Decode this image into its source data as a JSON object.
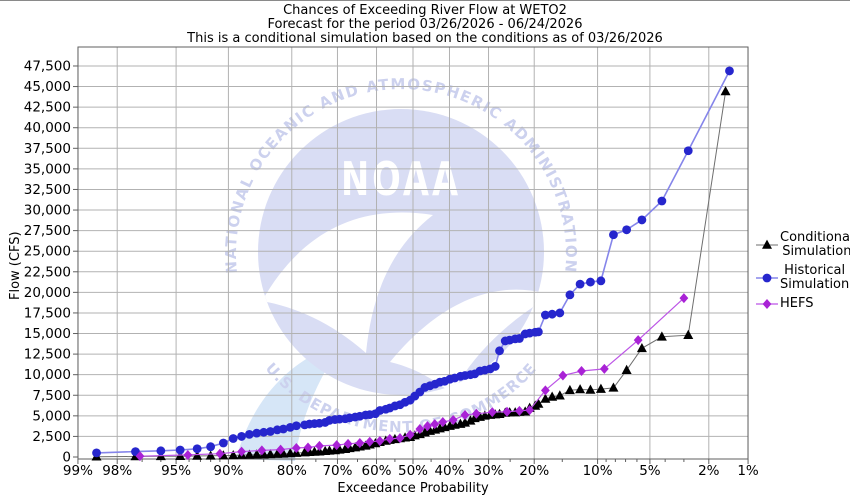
{
  "title": {
    "line1": "Chances of Exceeding River Flow at WETO2",
    "line2": "Forecast for the period 03/26/2026 - 06/24/2026",
    "line3": "This is a conditional simulation based on the conditions as of 03/26/2026"
  },
  "axes": {
    "x_label": "Exceedance Probability",
    "y_label": "Flow (CFS)"
  },
  "legend": {
    "position": "right",
    "items": [
      {
        "label_lines": [
          "Conditional",
          "Simulation"
        ],
        "marker": "triangle"
      },
      {
        "label_lines": [
          "Historical",
          "Simulation"
        ],
        "marker": "circle"
      },
      {
        "label_lines": [
          "HEFS"
        ],
        "marker": "diamond"
      }
    ]
  },
  "watermark": {
    "ring_text_top": "NATIONAL OCEANIC AND ATMOSPHERIC ADMINISTRATION",
    "ring_text_bottom": "U.S. DEPARTMENT OF COMMERCE",
    "center_text": "NOAA",
    "ring_color": "#ccd1ee",
    "disc_color": "#d9ddf4",
    "gull_color": "#ffffff",
    "outer_wing_color": "#d6e6f7"
  },
  "colors": {
    "background": "#ffffff",
    "grid": "#b2b2b2",
    "axis": "#5f5f5f",
    "text": "#000000"
  },
  "chart_data": {
    "type": "line",
    "title": "Chances of Exceeding River Flow at WETO2",
    "xlabel": "Exceedance Probability",
    "ylabel": "Flow (CFS)",
    "x_scale": "normal-probability (probit), high exceedance at left",
    "grid": true,
    "legend_position": "right",
    "ylim": [
      0,
      49500
    ],
    "y_tick_step": 2500,
    "y_ticks": [
      0,
      2500,
      5000,
      7500,
      10000,
      12500,
      15000,
      17500,
      20000,
      22500,
      25000,
      27500,
      30000,
      32500,
      35000,
      37500,
      40000,
      42500,
      45000,
      47500
    ],
    "x_ticks": [
      99,
      98,
      95,
      90,
      80,
      70,
      60,
      50,
      40,
      30,
      20,
      10,
      5,
      2,
      1
    ],
    "x_minor_ticks": [
      97,
      96,
      94,
      93,
      92,
      91,
      85,
      75,
      65,
      55,
      45,
      35,
      25,
      15,
      9,
      8,
      7,
      6,
      4,
      3
    ],
    "series": [
      {
        "name": "Conditional Simulation",
        "marker": "triangle",
        "color": "#000000",
        "line_color": "#6e6e6e",
        "line_width": 1,
        "points": [
          [
            98.6,
            30
          ],
          [
            97.3,
            60
          ],
          [
            96,
            80
          ],
          [
            94.7,
            100
          ],
          [
            93.3,
            120
          ],
          [
            92,
            140
          ],
          [
            90.6,
            170
          ],
          [
            89.4,
            200
          ],
          [
            88.3,
            230
          ],
          [
            87.2,
            250
          ],
          [
            86.1,
            280
          ],
          [
            85,
            300
          ],
          [
            83.9,
            320
          ],
          [
            82.7,
            350
          ],
          [
            81.6,
            380
          ],
          [
            80.3,
            430
          ],
          [
            79.1,
            480
          ],
          [
            77.4,
            540
          ],
          [
            76.4,
            580
          ],
          [
            75.3,
            620
          ],
          [
            74.2,
            650
          ],
          [
            72.9,
            700
          ],
          [
            71.9,
            750
          ],
          [
            70.6,
            800
          ],
          [
            69.5,
            870
          ],
          [
            68.1,
            950
          ],
          [
            67,
            1050
          ],
          [
            65.6,
            1150
          ],
          [
            64.4,
            1250
          ],
          [
            62.9,
            1350
          ],
          [
            61.8,
            1500
          ],
          [
            60.3,
            1650
          ],
          [
            59.1,
            1800
          ],
          [
            57.5,
            1950
          ],
          [
            56.4,
            2050
          ],
          [
            55,
            2150
          ],
          [
            53.6,
            2250
          ],
          [
            52.2,
            2350
          ],
          [
            50.8,
            2400
          ],
          [
            49.5,
            2600
          ],
          [
            48.1,
            2750
          ],
          [
            46.7,
            2950
          ],
          [
            45.3,
            3150
          ],
          [
            43.9,
            3300
          ],
          [
            42.6,
            3450
          ],
          [
            41.3,
            3600
          ],
          [
            39.9,
            3750
          ],
          [
            38.6,
            3900
          ],
          [
            37.1,
            4000
          ],
          [
            35.9,
            4150
          ],
          [
            34.5,
            4400
          ],
          [
            33.4,
            4700
          ],
          [
            32.1,
            4850
          ],
          [
            30.9,
            5000
          ],
          [
            29.6,
            5100
          ],
          [
            28.4,
            5150
          ],
          [
            27.4,
            5200
          ],
          [
            26.1,
            5350
          ],
          [
            25.1,
            5400
          ],
          [
            23.9,
            5400
          ],
          [
            23,
            5450
          ],
          [
            21.8,
            5500
          ],
          [
            20.9,
            5950
          ],
          [
            19.8,
            6200
          ],
          [
            19.2,
            6450
          ],
          [
            17.9,
            7050
          ],
          [
            16.7,
            7300
          ],
          [
            15.4,
            7450
          ],
          [
            13.8,
            8100
          ],
          [
            12.3,
            8200
          ],
          [
            10.9,
            8150
          ],
          [
            9.6,
            8250
          ],
          [
            8.2,
            8400
          ],
          [
            6.9,
            10550
          ],
          [
            5.6,
            13200
          ],
          [
            4.2,
            14600
          ],
          [
            2.8,
            14800
          ],
          [
            1.5,
            44400
          ]
        ]
      },
      {
        "name": "Historical Simulation",
        "marker": "circle",
        "color": "#2626cd",
        "line_color": "#8585ea",
        "line_width": 1.6,
        "points": [
          [
            98.6,
            500
          ],
          [
            97.3,
            650
          ],
          [
            96,
            750
          ],
          [
            94.7,
            850
          ],
          [
            93.3,
            1000
          ],
          [
            92,
            1250
          ],
          [
            90.6,
            1700
          ],
          [
            89.4,
            2250
          ],
          [
            88.3,
            2500
          ],
          [
            87.2,
            2750
          ],
          [
            86.1,
            2900
          ],
          [
            85,
            3000
          ],
          [
            83.9,
            3100
          ],
          [
            82.7,
            3300
          ],
          [
            81.6,
            3400
          ],
          [
            80.3,
            3600
          ],
          [
            79.1,
            3800
          ],
          [
            77.4,
            3900
          ],
          [
            76.4,
            4000
          ],
          [
            75.3,
            4050
          ],
          [
            74.2,
            4100
          ],
          [
            72.9,
            4200
          ],
          [
            71.9,
            4450
          ],
          [
            70.6,
            4550
          ],
          [
            69.5,
            4600
          ],
          [
            68.1,
            4650
          ],
          [
            67,
            4750
          ],
          [
            65.6,
            4850
          ],
          [
            64.4,
            4950
          ],
          [
            62.9,
            5100
          ],
          [
            61.8,
            5150
          ],
          [
            60.3,
            5250
          ],
          [
            59.1,
            5650
          ],
          [
            57.5,
            5800
          ],
          [
            56.4,
            5950
          ],
          [
            55,
            6200
          ],
          [
            53.6,
            6350
          ],
          [
            52.2,
            6650
          ],
          [
            50.8,
            6900
          ],
          [
            49.5,
            7400
          ],
          [
            48.1,
            7900
          ],
          [
            46.7,
            8450
          ],
          [
            45.3,
            8650
          ],
          [
            43.9,
            8850
          ],
          [
            42.6,
            9100
          ],
          [
            41.3,
            9200
          ],
          [
            39.9,
            9450
          ],
          [
            38.6,
            9600
          ],
          [
            37.1,
            9800
          ],
          [
            35.9,
            9900
          ],
          [
            34.5,
            10000
          ],
          [
            33.4,
            10100
          ],
          [
            32.1,
            10450
          ],
          [
            30.9,
            10550
          ],
          [
            29.6,
            10700
          ],
          [
            28.4,
            11000
          ],
          [
            27.4,
            12900
          ],
          [
            26.1,
            14100
          ],
          [
            25.1,
            14200
          ],
          [
            23.9,
            14350
          ],
          [
            23,
            14400
          ],
          [
            21.8,
            14950
          ],
          [
            20.9,
            15050
          ],
          [
            19.8,
            15150
          ],
          [
            19.2,
            15200
          ],
          [
            17.9,
            17250
          ],
          [
            16.7,
            17350
          ],
          [
            15.4,
            17500
          ],
          [
            13.8,
            19700
          ],
          [
            12.3,
            21000
          ],
          [
            10.9,
            21250
          ],
          [
            9.6,
            21400
          ],
          [
            8.2,
            27000
          ],
          [
            6.9,
            27600
          ],
          [
            5.6,
            28800
          ],
          [
            4.2,
            31100
          ],
          [
            2.8,
            37200
          ],
          [
            1.4,
            46900
          ]
        ]
      },
      {
        "name": "HEFS",
        "marker": "diamond",
        "color": "#a922d6",
        "line_color": "#bc55e6",
        "line_width": 1.2,
        "points": [
          [
            97.1,
            100
          ],
          [
            94.1,
            250
          ],
          [
            91,
            400
          ],
          [
            88.3,
            650
          ],
          [
            85.3,
            800
          ],
          [
            82.1,
            900
          ],
          [
            79.1,
            1100
          ],
          [
            76.7,
            1150
          ],
          [
            74.2,
            1350
          ],
          [
            70.2,
            1450
          ],
          [
            67.4,
            1600
          ],
          [
            64.4,
            1700
          ],
          [
            61.8,
            1850
          ],
          [
            59.1,
            1950
          ],
          [
            56.4,
            2200
          ],
          [
            53.6,
            2300
          ],
          [
            50.8,
            2700
          ],
          [
            48.1,
            3400
          ],
          [
            46,
            3750
          ],
          [
            44,
            4000
          ],
          [
            41.8,
            4250
          ],
          [
            39,
            4500
          ],
          [
            35.9,
            5100
          ],
          [
            33,
            5250
          ],
          [
            29.1,
            5450
          ],
          [
            25.7,
            5500
          ],
          [
            23,
            5600
          ],
          [
            20.9,
            5700
          ],
          [
            17.9,
            8100
          ],
          [
            14.9,
            9900
          ],
          [
            12.1,
            10450
          ],
          [
            9.2,
            10700
          ],
          [
            5.9,
            14200
          ],
          [
            3,
            19300
          ]
        ]
      }
    ]
  }
}
